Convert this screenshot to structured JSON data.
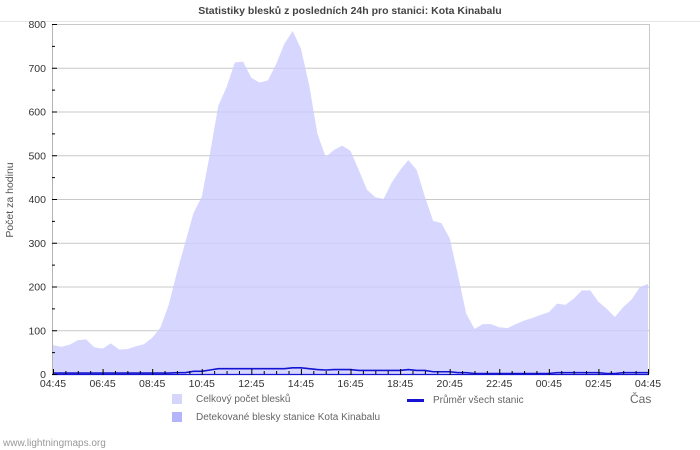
{
  "header": {
    "title": "Statistiky blesků z posledních 24h pro stanici: Kota Kinabalu"
  },
  "legend": {
    "total": {
      "label": "Celkový počet blesků",
      "color": "#d6d6fd"
    },
    "detected": {
      "label": "Detekované blesky stanice Kota Kinabalu",
      "color": "#b4b4fb"
    },
    "average": {
      "label": "Průměr všech stanic",
      "color": "#1414d2"
    }
  },
  "axes": {
    "ylabel": "Počet za hodinu",
    "xlabel": "Čas"
  },
  "footer": {
    "source": "www.lightningmaps.org"
  },
  "chart_data": {
    "type": "area",
    "title": "Statistiky blesků z posledních 24h pro stanici: Kota Kinabalu",
    "xlabel": "Čas",
    "ylabel": "Počet za hodinu",
    "ylim": [
      0,
      800
    ],
    "yticks": [
      0,
      100,
      200,
      300,
      400,
      500,
      600,
      700,
      800
    ],
    "xticks": [
      "04:45",
      "06:45",
      "08:45",
      "10:45",
      "12:45",
      "14:45",
      "16:45",
      "18:45",
      "20:45",
      "22:45",
      "00:45",
      "02:45",
      "04:45"
    ],
    "grid": true,
    "legend_position": "bottom",
    "x": [
      "04:45",
      "05:05",
      "05:25",
      "05:45",
      "06:05",
      "06:25",
      "06:45",
      "07:05",
      "07:25",
      "07:45",
      "08:05",
      "08:25",
      "08:45",
      "09:05",
      "09:25",
      "09:45",
      "10:05",
      "10:25",
      "10:45",
      "11:05",
      "11:25",
      "11:45",
      "12:05",
      "12:25",
      "12:45",
      "13:05",
      "13:25",
      "13:45",
      "14:05",
      "14:25",
      "14:45",
      "15:05",
      "15:25",
      "15:45",
      "16:05",
      "16:25",
      "16:45",
      "17:05",
      "17:25",
      "17:45",
      "18:05",
      "18:25",
      "18:45",
      "19:05",
      "19:25",
      "19:45",
      "20:05",
      "20:25",
      "20:45",
      "21:05",
      "21:25",
      "21:45",
      "22:05",
      "22:25",
      "22:45",
      "23:05",
      "23:25",
      "23:45",
      "00:05",
      "00:25",
      "00:45",
      "01:05",
      "01:25",
      "01:45",
      "02:05",
      "02:25",
      "02:45",
      "03:05",
      "03:25",
      "03:45",
      "04:05",
      "04:25",
      "04:45"
    ],
    "series": [
      {
        "name": "Celkový počet blesků",
        "type": "area",
        "color": "#d6d6fd",
        "values": [
          66,
          62,
          67,
          77,
          79,
          61,
          58,
          70,
          56,
          57,
          63,
          68,
          83,
          106,
          158,
          233,
          300,
          368,
          405,
          504,
          613,
          655,
          712,
          714,
          677,
          666,
          671,
          708,
          755,
          784,
          744,
          660,
          549,
          496,
          512,
          522,
          510,
          466,
          421,
          404,
          400,
          438,
          466,
          489,
          467,
          405,
          350,
          345,
          310,
          227,
          138,
          103,
          114,
          114,
          107,
          105,
          114,
          122,
          128,
          135,
          141,
          161,
          158,
          172,
          191,
          191,
          165,
          149,
          130,
          153,
          170,
          198,
          206
        ]
      },
      {
        "name": "Detekované blesky stanice Kota Kinabalu",
        "type": "area",
        "color": "#b4b4fb",
        "values": [
          0,
          0,
          0,
          0,
          0,
          0,
          0,
          0,
          0,
          0,
          0,
          0,
          0,
          0,
          0,
          0,
          0,
          0,
          0,
          0,
          0,
          0,
          0,
          0,
          0,
          0,
          0,
          0,
          0,
          0,
          0,
          0,
          0,
          0,
          0,
          0,
          0,
          0,
          0,
          0,
          0,
          0,
          0,
          0,
          0,
          0,
          0,
          0,
          0,
          0,
          0,
          0,
          0,
          0,
          0,
          0,
          0,
          0,
          0,
          0,
          0,
          0,
          0,
          0,
          0,
          0,
          0,
          0,
          0,
          0,
          0,
          0,
          0
        ]
      },
      {
        "name": "Průměr všech stanic",
        "type": "line",
        "color": "#1414d2",
        "values": [
          1,
          1,
          1,
          1,
          1,
          1,
          1,
          1,
          1,
          1,
          1,
          1,
          1,
          1,
          1,
          2,
          2,
          5,
          5,
          8,
          11,
          11,
          11,
          11,
          11,
          11,
          11,
          11,
          11,
          13,
          13,
          11,
          9,
          8,
          9,
          9,
          9,
          7,
          7,
          7,
          7,
          7,
          7,
          9,
          7,
          7,
          4,
          4,
          4,
          2,
          2,
          0,
          0,
          0,
          0,
          0,
          0,
          0,
          0,
          0,
          0,
          2,
          2,
          2,
          2,
          2,
          2,
          0,
          0,
          2,
          2,
          2,
          2
        ]
      }
    ]
  }
}
